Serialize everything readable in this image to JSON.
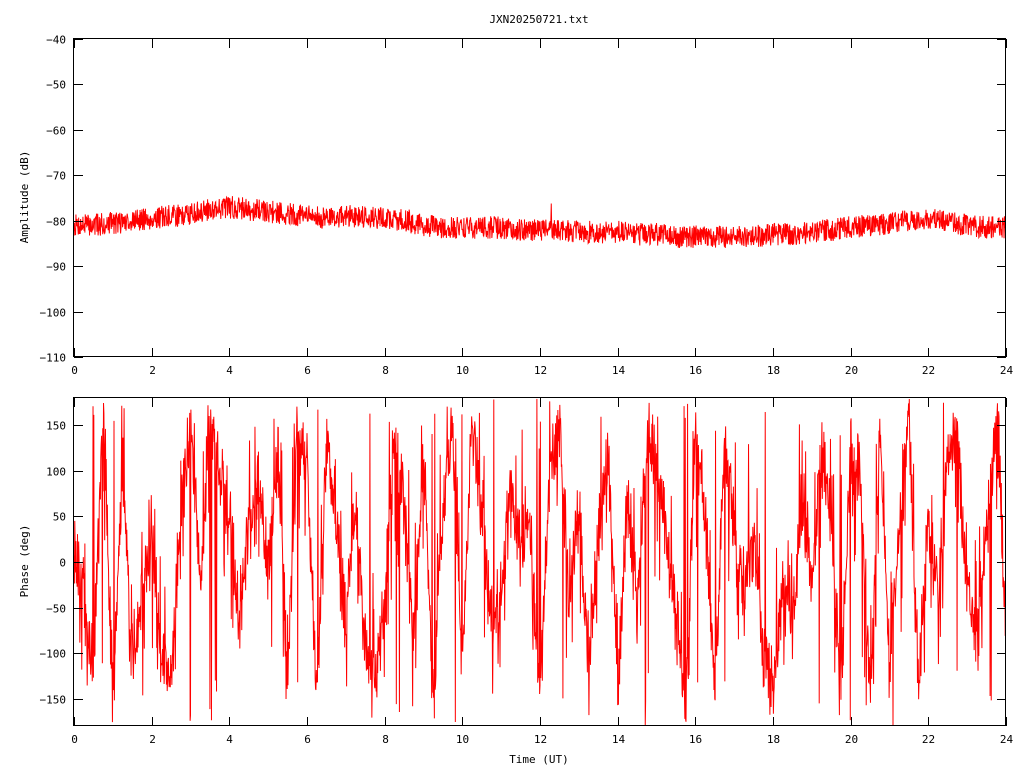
{
  "chart_data": [
    {
      "type": "line",
      "panel": "amplitude",
      "title": "JXN20250721.txt",
      "xlabel": "",
      "ylabel": "Amplitude (dB)",
      "xlim": [
        0,
        24
      ],
      "ylim": [
        -110,
        -40
      ],
      "xticks": [
        "0",
        "2",
        "4",
        "6",
        "8",
        "10",
        "12",
        "14",
        "16",
        "18",
        "20",
        "22",
        "24"
      ],
      "yticks": [
        "-40",
        "-50",
        "-60",
        "-70",
        "-80",
        "-90",
        "-100",
        "-110"
      ],
      "grid": false,
      "legend": "none",
      "color": "#ff0000",
      "series": [
        {
          "x": [
            0,
            0.5,
            1,
            1.5,
            2,
            2.5,
            3,
            3.5,
            4,
            4.5,
            5,
            5.5,
            6,
            6.5,
            7,
            7.5,
            8,
            8.5,
            9,
            9.5,
            10,
            10.5,
            11,
            11.5,
            12,
            12.5,
            13,
            13.5,
            14,
            14.5,
            15,
            15.5,
            16,
            16.5,
            17,
            17.5,
            18,
            18.5,
            19,
            19.5,
            20,
            20.5,
            21,
            21.5,
            22,
            22.5,
            23,
            23.5,
            24
          ],
          "y": [
            -81,
            -81,
            -80.5,
            -80,
            -79.5,
            -79,
            -78.5,
            -77.5,
            -77,
            -77.5,
            -78,
            -78.5,
            -79,
            -79.5,
            -79,
            -79,
            -79.5,
            -80,
            -81,
            -81.5,
            -81.5,
            -81.5,
            -81.5,
            -82,
            -82,
            -82,
            -82.5,
            -82.5,
            -82.5,
            -83,
            -83,
            -83.5,
            -83.5,
            -83.5,
            -83.5,
            -83.5,
            -83,
            -83,
            -82.5,
            -82,
            -81.5,
            -81,
            -80.5,
            -80,
            -79.5,
            -80.5,
            -81,
            -81.5,
            -81.5
          ],
          "spread": 2.5
        }
      ]
    },
    {
      "type": "line",
      "panel": "phase",
      "title": "",
      "xlabel": "Time (UT)",
      "ylabel": "Phase (deg)",
      "xlim": [
        0,
        24
      ],
      "ylim": [
        -180,
        180
      ],
      "xticks": [
        "0",
        "2",
        "4",
        "6",
        "8",
        "10",
        "12",
        "14",
        "16",
        "18",
        "20",
        "22",
        "24"
      ],
      "yticks": [
        "150",
        "100",
        "50",
        "0",
        "-50",
        "-100",
        "-150"
      ],
      "grid": false,
      "legend": "none",
      "color": "#ff0000",
      "series": [
        {
          "x": [
            0,
            0.25,
            0.5,
            0.75,
            1,
            1.25,
            1.5,
            1.75,
            2,
            2.25,
            2.5,
            2.75,
            3,
            3.25,
            3.5,
            3.75,
            4,
            4.25,
            4.5,
            4.75,
            5,
            5.25,
            5.5,
            5.75,
            6,
            6.25,
            6.5,
            6.75,
            7,
            7.25,
            7.5,
            7.75,
            8,
            8.25,
            8.5,
            8.75,
            9,
            9.25,
            9.5,
            9.75,
            10,
            10.25,
            10.5,
            10.75,
            11,
            11.25,
            11.5,
            11.75,
            12,
            12.25,
            12.5,
            12.75,
            13,
            13.25,
            13.5,
            13.75,
            14,
            14.25,
            14.5,
            14.75,
            15,
            15.25,
            15.5,
            15.75,
            16,
            16.25,
            16.5,
            16.75,
            17,
            17.25,
            17.5,
            17.75,
            18,
            18.25,
            18.5,
            18.75,
            19,
            19.25,
            19.5,
            19.75,
            20,
            20.25,
            20.5,
            20.75,
            21,
            21.25,
            21.5,
            21.75,
            22,
            22.25,
            22.5,
            22.75,
            23,
            23.25,
            23.5,
            23.75,
            24
          ],
          "y": [
            20,
            -40,
            -120,
            170,
            -150,
            110,
            -90,
            -50,
            30,
            -110,
            -140,
            60,
            140,
            -20,
            160,
            90,
            60,
            -60,
            40,
            80,
            -20,
            120,
            -130,
            150,
            110,
            -160,
            130,
            40,
            -60,
            60,
            -90,
            -120,
            -40,
            130,
            60,
            -100,
            120,
            -150,
            60,
            160,
            -110,
            150,
            60,
            -70,
            -30,
            80,
            20,
            40,
            -160,
            110,
            150,
            -40,
            70,
            -120,
            30,
            120,
            -130,
            70,
            -50,
            140,
            90,
            30,
            -60,
            -170,
            140,
            60,
            -150,
            130,
            40,
            -40,
            30,
            -100,
            -130,
            -30,
            -80,
            80,
            -20,
            120,
            40,
            -140,
            130,
            80,
            -160,
            150,
            -120,
            30,
            170,
            -140,
            60,
            -40,
            110,
            140,
            -30,
            -90,
            40,
            160,
            -60
          ],
          "spread": 20
        }
      ]
    }
  ]
}
